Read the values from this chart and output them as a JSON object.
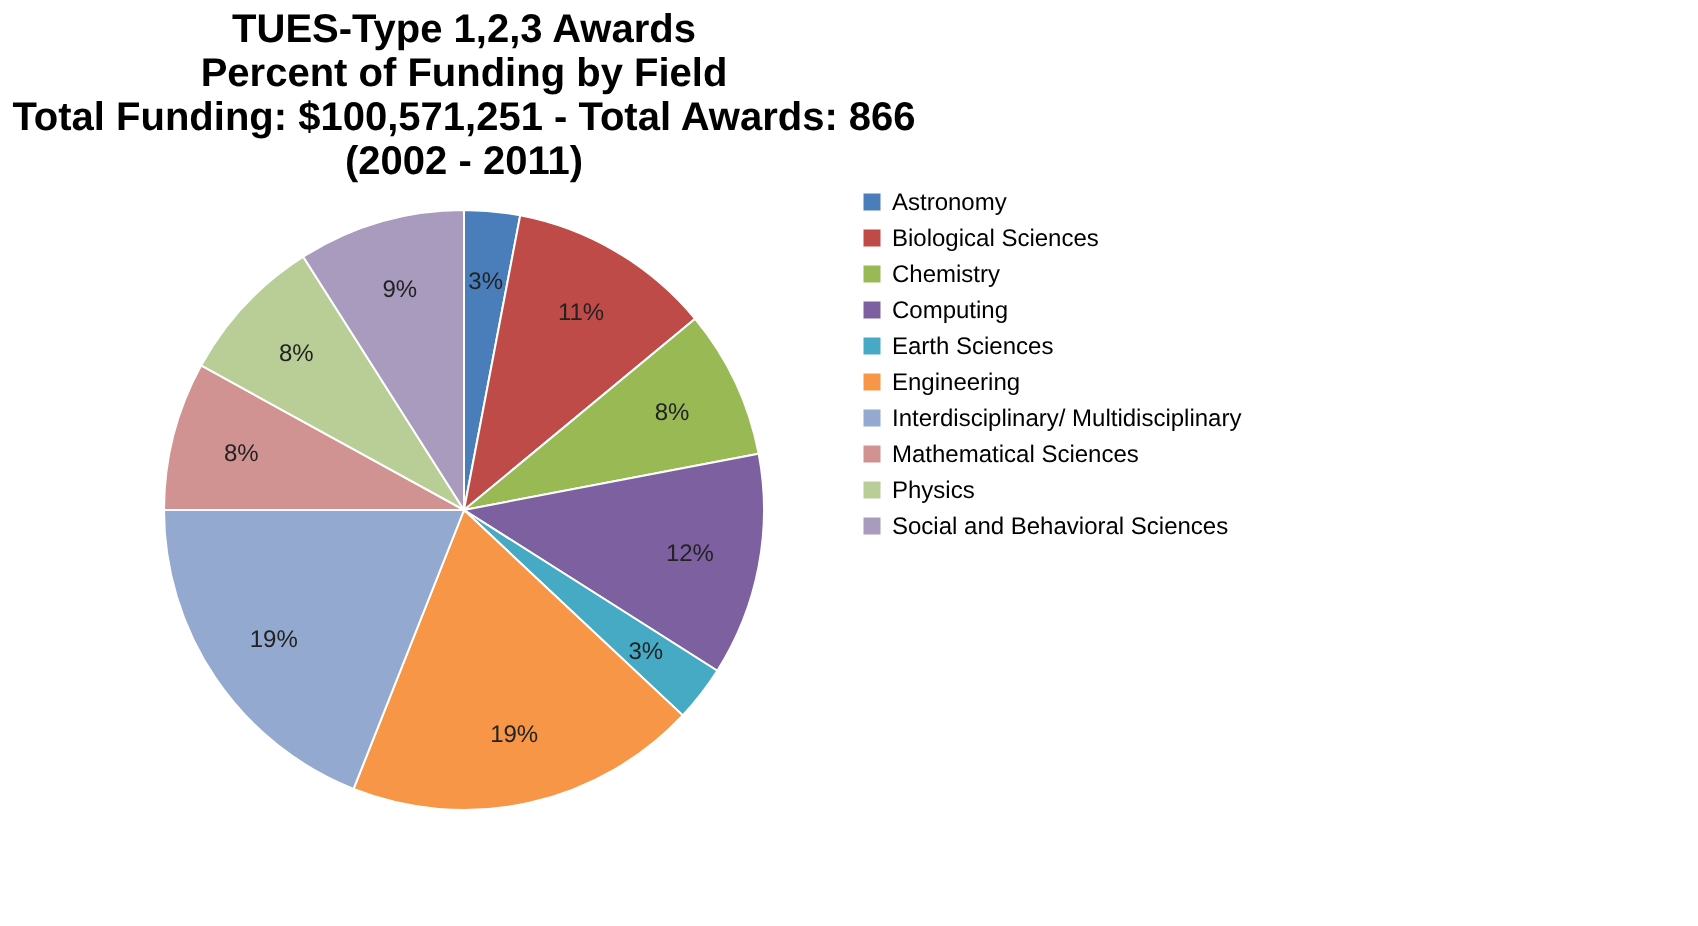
{
  "chart_data": {
    "type": "pie",
    "title": "TUES-Type 1,2,3 Awards\nPercent of Funding by Field\nTotal Funding: $100,571,251 - Total Awards: 866\n(2002 - 2011)",
    "categories": [
      "Astronomy",
      "Biological Sciences",
      "Chemistry",
      "Computing",
      "Earth Sciences",
      "Engineering",
      "Interdisciplinary/ Multidisciplinary",
      "Mathematical Sciences",
      "Physics",
      "Social and Behavioral Sciences"
    ],
    "values": [
      3,
      11,
      8,
      12,
      3,
      19,
      19,
      8,
      8,
      9
    ],
    "value_labels": [
      "3%",
      "11%",
      "8%",
      "12%",
      "3%",
      "19%",
      "19%",
      "8%",
      "8%",
      "9%"
    ],
    "colors": [
      "#4a7ebb",
      "#be4b48",
      "#98b954",
      "#7d60a0",
      "#46aac5",
      "#f79646",
      "#93a9cf",
      "#d19392",
      "#b9cd96",
      "#a99bbd"
    ],
    "legend": "right"
  }
}
